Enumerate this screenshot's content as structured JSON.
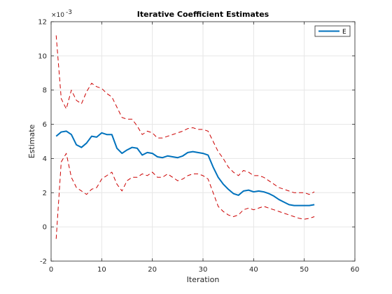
{
  "chart_data": {
    "type": "line",
    "title": "Iterative Coefficient Estimates",
    "xlabel": "Iteration",
    "ylabel": "Estimate",
    "y_multiplier_label": "×10",
    "y_multiplier_exponent": "-3",
    "xlim": [
      0,
      60
    ],
    "ylim": [
      -2,
      12
    ],
    "xticks": [
      0,
      10,
      20,
      30,
      40,
      50,
      60
    ],
    "yticks": [
      -2,
      0,
      2,
      4,
      6,
      8,
      10,
      12
    ],
    "grid": true,
    "legend": {
      "placement": "top-right",
      "entries": [
        "E"
      ]
    },
    "colors": {
      "estimate": "#0072bd",
      "bounds": "#cc0000",
      "grid": "#e6e6e6",
      "axis": "#262626"
    },
    "x": [
      1,
      2,
      3,
      4,
      5,
      6,
      7,
      8,
      9,
      10,
      11,
      12,
      13,
      14,
      15,
      16,
      17,
      18,
      19,
      20,
      21,
      22,
      23,
      24,
      25,
      26,
      27,
      28,
      29,
      30,
      31,
      32,
      33,
      34,
      35,
      36,
      37,
      38,
      39,
      40,
      41,
      42,
      43,
      44,
      45,
      46,
      47,
      48,
      49,
      50,
      51,
      52
    ],
    "series": [
      {
        "name": "E",
        "role": "estimate",
        "values": [
          5.3,
          5.55,
          5.6,
          5.4,
          4.8,
          4.65,
          4.9,
          5.3,
          5.25,
          5.5,
          5.4,
          5.4,
          4.6,
          4.3,
          4.5,
          4.65,
          4.6,
          4.2,
          4.35,
          4.3,
          4.1,
          4.05,
          4.15,
          4.1,
          4.05,
          4.15,
          4.35,
          4.4,
          4.35,
          4.3,
          4.2,
          3.5,
          2.9,
          2.5,
          2.2,
          1.95,
          1.85,
          2.1,
          2.15,
          2.05,
          2.1,
          2.05,
          1.95,
          1.8,
          1.6,
          1.45,
          1.3,
          1.25,
          1.25,
          1.25,
          1.25,
          1.3
        ]
      },
      {
        "role": "upper-bound",
        "values": [
          11.2,
          7.5,
          6.9,
          8.0,
          7.4,
          7.2,
          7.9,
          8.4,
          8.2,
          8.1,
          7.8,
          7.6,
          7.0,
          6.4,
          6.3,
          6.3,
          5.9,
          5.4,
          5.6,
          5.5,
          5.2,
          5.2,
          5.3,
          5.4,
          5.5,
          5.6,
          5.75,
          5.8,
          5.7,
          5.7,
          5.6,
          5.0,
          4.4,
          4.0,
          3.5,
          3.2,
          3.0,
          3.3,
          3.2,
          3.0,
          3.0,
          2.9,
          2.7,
          2.5,
          2.3,
          2.2,
          2.1,
          2.0,
          2.0,
          2.0,
          1.9,
          2.05
        ]
      },
      {
        "role": "lower-bound",
        "values": [
          -0.7,
          3.8,
          4.3,
          2.9,
          2.3,
          2.1,
          1.9,
          2.2,
          2.3,
          2.8,
          3.0,
          3.2,
          2.5,
          2.1,
          2.7,
          2.9,
          2.9,
          3.1,
          3.0,
          3.2,
          2.9,
          2.9,
          3.1,
          2.9,
          2.7,
          2.8,
          3.0,
          3.1,
          3.1,
          3.0,
          2.8,
          2.0,
          1.2,
          0.9,
          0.7,
          0.6,
          0.7,
          1.0,
          1.1,
          1.0,
          1.1,
          1.2,
          1.1,
          1.0,
          0.9,
          0.8,
          0.7,
          0.6,
          0.5,
          0.45,
          0.5,
          0.6
        ]
      }
    ]
  }
}
